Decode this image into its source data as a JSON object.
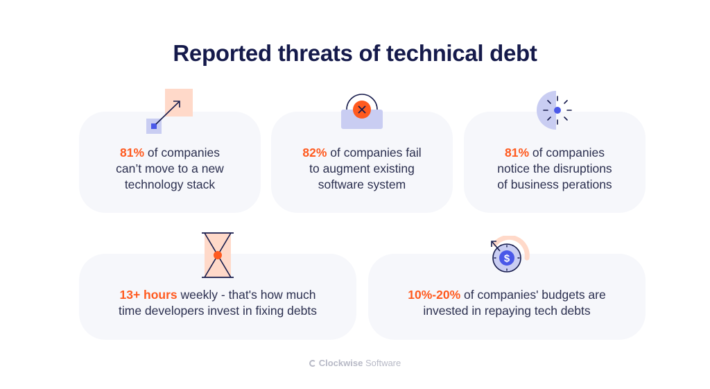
{
  "title": "Reported threats of technical debt",
  "cards": [
    {
      "highlight": "81%",
      "text1": " of companies",
      "text2": "can’t move to a new",
      "text3": "technology stack"
    },
    {
      "highlight": "82%",
      "text1": " of companies fail",
      "text2": "to augment existing",
      "text3": "software system"
    },
    {
      "highlight": "81%",
      "text1": " of companies",
      "text2": "notice the disruptions",
      "text3": "of business perations"
    },
    {
      "highlight": "13+ hours",
      "text1": " weekly - that's how much",
      "text2": "time developers invest in fixing debts"
    },
    {
      "highlight": "10%-20%",
      "text1": " of companies' budgets are",
      "text2": "invested in repaying tech debts"
    }
  ],
  "brand": {
    "name_bold": "Clockwise",
    "name_light": " Software"
  },
  "colors": {
    "accent": "#ff5a1f",
    "card": "#f6f7fb",
    "peach": "#ffd9c9",
    "lavender": "#c9cdf2",
    "blue": "#4a58e8",
    "navy": "#151a4b"
  },
  "icons": [
    "arrow-diagonal-icon",
    "laptop-error-icon",
    "half-sun-icon",
    "hourglass-icon",
    "dollar-gauge-icon"
  ]
}
